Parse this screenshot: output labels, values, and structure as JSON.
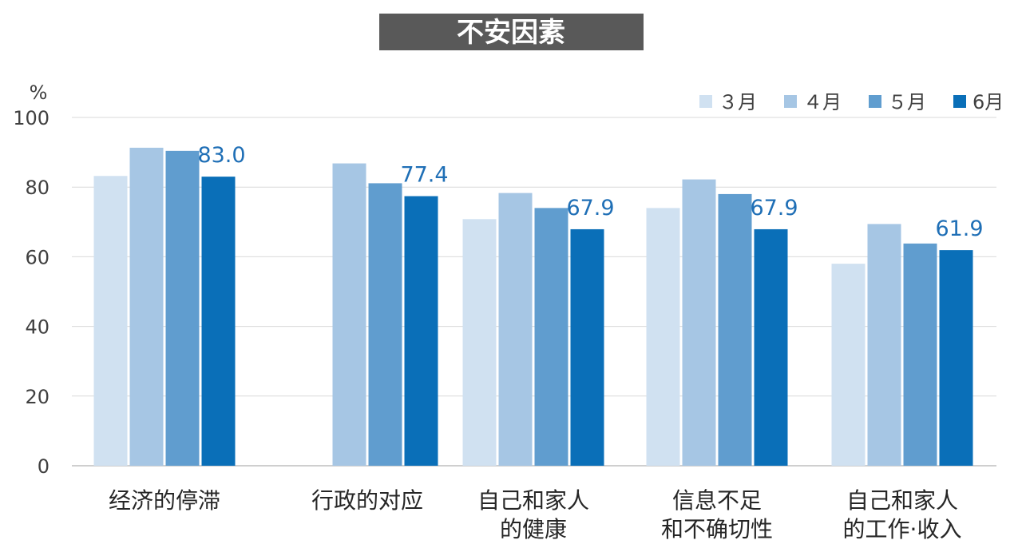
{
  "chart_data": {
    "type": "bar",
    "title": "不安因素",
    "ylabel": "%",
    "ylim": [
      0,
      100
    ],
    "yticks": [
      0,
      20,
      40,
      60,
      80,
      100
    ],
    "grid": true,
    "legend_position": "top-right",
    "categories": [
      [
        "经济的停滞"
      ],
      [
        "行政的对应"
      ],
      [
        "自己和家人",
        "的健康"
      ],
      [
        "信息不足",
        "和不确切性"
      ],
      [
        "自己和家人",
        "的工作·收入"
      ]
    ],
    "series": [
      {
        "name": "３月",
        "color": "#d0e1f1",
        "values": [
          83.2,
          null,
          70.8,
          74.0,
          58.0
        ]
      },
      {
        "name": "４月",
        "color": "#a6c6e4",
        "values": [
          91.3,
          86.8,
          78.3,
          82.2,
          69.4
        ]
      },
      {
        "name": "５月",
        "color": "#609dcf",
        "values": [
          90.4,
          81.1,
          74.0,
          78.0,
          63.8
        ]
      },
      {
        "name": "6月",
        "color": "#0a6fb8",
        "values": [
          83.0,
          77.4,
          67.9,
          67.9,
          61.9
        ]
      }
    ],
    "data_labels": [
      "83.0",
      "77.4",
      "67.9",
      "67.9",
      "61.9"
    ]
  }
}
